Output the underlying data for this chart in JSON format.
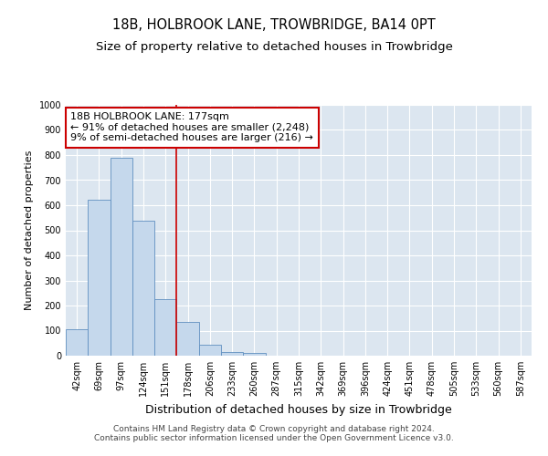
{
  "title": "18B, HOLBROOK LANE, TROWBRIDGE, BA14 0PT",
  "subtitle": "Size of property relative to detached houses in Trowbridge",
  "xlabel": "Distribution of detached houses by size in Trowbridge",
  "ylabel": "Number of detached properties",
  "footer_line1": "Contains HM Land Registry data © Crown copyright and database right 2024.",
  "footer_line2": "Contains public sector information licensed under the Open Government Licence v3.0.",
  "bar_color": "#c5d8ec",
  "bar_edge_color": "#6090c0",
  "bin_labels": [
    "42sqm",
    "69sqm",
    "97sqm",
    "124sqm",
    "151sqm",
    "178sqm",
    "206sqm",
    "233sqm",
    "260sqm",
    "287sqm",
    "315sqm",
    "342sqm",
    "369sqm",
    "396sqm",
    "424sqm",
    "451sqm",
    "478sqm",
    "505sqm",
    "533sqm",
    "560sqm",
    "587sqm"
  ],
  "values": [
    106,
    621,
    789,
    540,
    224,
    136,
    42,
    15,
    10,
    0,
    0,
    0,
    0,
    0,
    0,
    0,
    0,
    0,
    0,
    0,
    0
  ],
  "property_label": "18B HOLBROOK LANE: 177sqm",
  "annotation_line1": "← 91% of detached houses are smaller (2,248)",
  "annotation_line2": "9% of semi-detached houses are larger (216) →",
  "vline_color": "#cc0000",
  "annotation_box_color": "#ffffff",
  "annotation_box_edge": "#cc0000",
  "ylim": [
    0,
    1000
  ],
  "yticks": [
    0,
    100,
    200,
    300,
    400,
    500,
    600,
    700,
    800,
    900,
    1000
  ],
  "bg_color": "#dce6f0",
  "grid_color": "#ffffff",
  "vline_bin_index": 5,
  "title_fontsize": 10.5,
  "subtitle_fontsize": 9.5,
  "xlabel_fontsize": 9,
  "ylabel_fontsize": 8,
  "tick_fontsize": 7,
  "footer_fontsize": 6.5,
  "annotation_fontsize": 8
}
